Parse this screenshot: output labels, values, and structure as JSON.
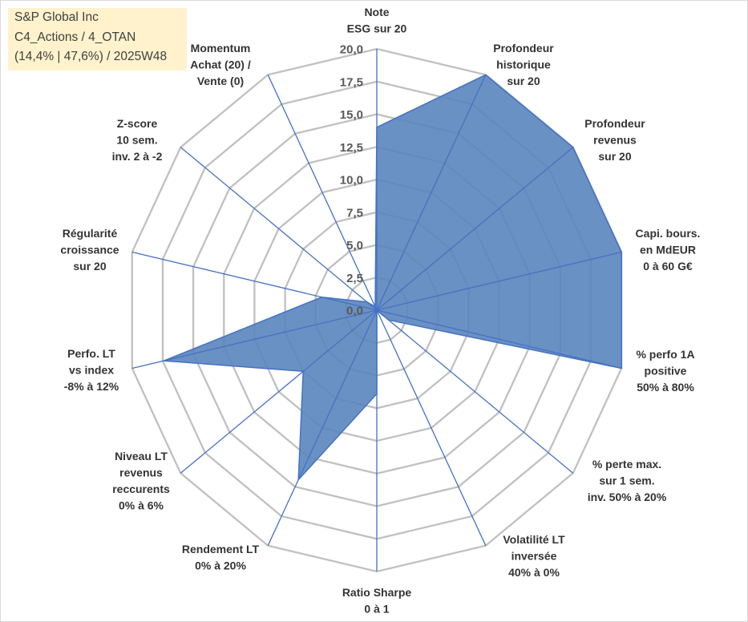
{
  "chart_data": {
    "type": "radar",
    "title": "S&P Global Inc",
    "subtitle": [
      "C4_Actions / 4_OTAN",
      "(14,4% | 47,6%) / 2025W48"
    ],
    "categories": [
      [
        "Note",
        "ESG sur 20"
      ],
      [
        "Profondeur",
        "historique",
        "sur 20"
      ],
      [
        "Profondeur",
        "revenus",
        "sur 20"
      ],
      [
        "Capi. bours.",
        "en MdEUR",
        "0 à 60 G€"
      ],
      [
        "% perfo 1A",
        "positive",
        "50% à 80%"
      ],
      [
        "% perte max.",
        "sur 1 sem.",
        "inv. 50% à 20%"
      ],
      [
        "Volatilité LT",
        "inversée",
        "40% à 0%"
      ],
      [
        "Ratio Sharpe",
        "0 à 1"
      ],
      [
        "Rendement LT",
        "0% à 20%"
      ],
      [
        "Niveau LT",
        "revenus",
        "reccurents",
        "0% à 6%"
      ],
      [
        "Perfo. LT",
        "vs index",
        "-8% à 12%"
      ],
      [
        "Régularité",
        "croissance",
        "sur 20"
      ],
      [
        "Z-score",
        "10 sem.",
        "inv. 2 à -2"
      ],
      [
        "Momentum",
        "Achat (20) /",
        "Vente (0)"
      ]
    ],
    "values": [
      14.0,
      20.0,
      20.0,
      20.0,
      20.0,
      1.2,
      0.0,
      6.4,
      14.4,
      7.5,
      17.4,
      4.5,
      1.0,
      0.3
    ],
    "rlim": [
      0,
      20
    ],
    "ticks": [
      0,
      2.5,
      5,
      7.5,
      10,
      12.5,
      15,
      17.5,
      20
    ],
    "tick_labels": [
      "0,0",
      "2,5",
      "5,0",
      "7,5",
      "10,0",
      "12,5",
      "15,0",
      "17,5",
      "20,0"
    ],
    "grid": true
  },
  "colors": {
    "area_fill": "#5A85BD",
    "area_stroke": "#4472C4",
    "axis": "#4472C4",
    "grid": "#C0C0C0",
    "title_bg": "#FFF2CC"
  }
}
